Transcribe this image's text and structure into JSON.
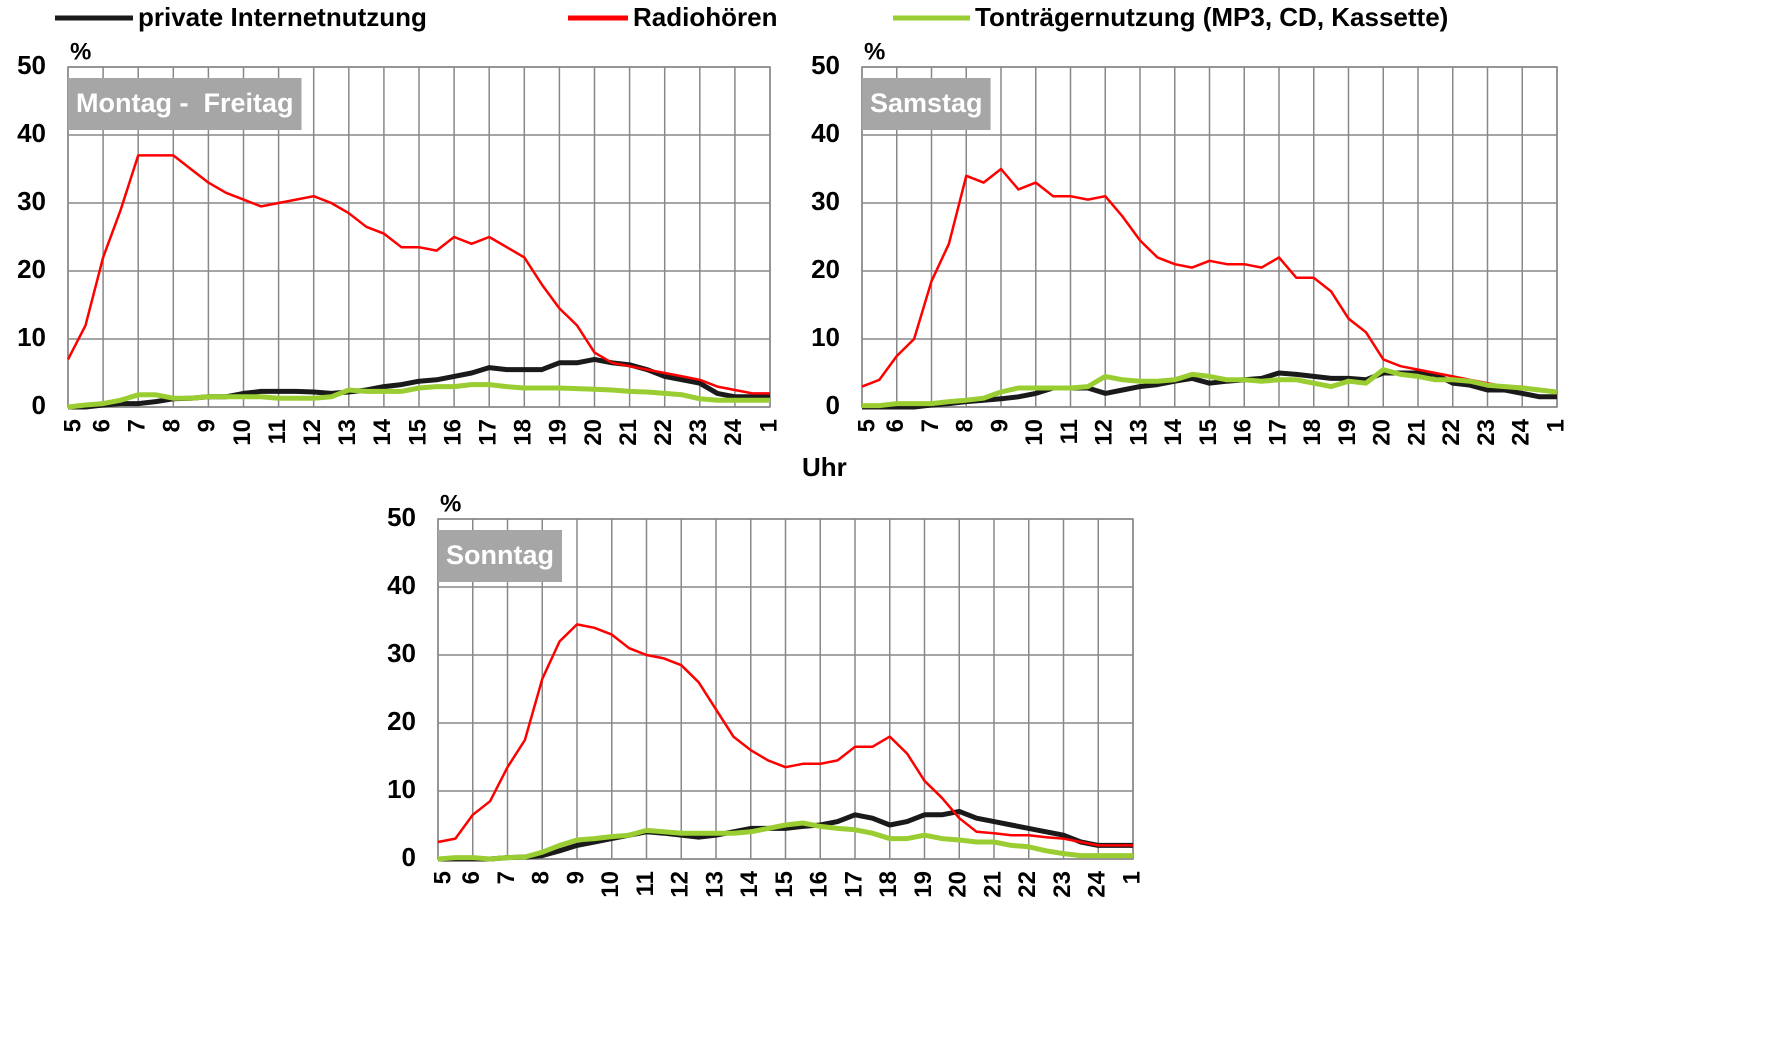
{
  "chart_data": [
    {
      "type": "line",
      "title": "Montag -  Freitag",
      "ylabel": "%",
      "x": [
        5,
        5.5,
        6,
        6.5,
        7,
        7.5,
        8,
        8.5,
        9,
        9.5,
        10,
        10.5,
        11,
        11.5,
        12,
        12.5,
        13,
        13.5,
        14,
        14.5,
        15,
        15.5,
        16,
        16.5,
        17,
        17.5,
        18,
        18.5,
        19,
        19.5,
        20,
        20.5,
        21,
        21.5,
        22,
        22.5,
        23,
        23.5,
        24,
        24.5,
        25
      ],
      "xlim": [
        5,
        25
      ],
      "xticks": [
        5,
        6,
        7,
        8,
        9,
        10,
        11,
        12,
        13,
        14,
        15,
        16,
        17,
        18,
        19,
        20,
        21,
        22,
        23,
        24,
        {
          "value": 25,
          "label": "1"
        }
      ],
      "ylim": [
        0,
        50
      ],
      "yticks": [
        0,
        10,
        20,
        30,
        40,
        50
      ],
      "grid": true,
      "legend": "top",
      "series": [
        {
          "name": "private Internetnutzung",
          "color": "#1a1a1a",
          "values": [
            0,
            0,
            0.3,
            0.5,
            0.5,
            0.8,
            1.2,
            1.3,
            1.5,
            1.5,
            2,
            2.3,
            2.3,
            2.3,
            2.2,
            2,
            2.2,
            2.5,
            3,
            3.3,
            3.8,
            4,
            4.5,
            5,
            5.8,
            5.5,
            5.5,
            5.5,
            6.5,
            6.5,
            7,
            6.5,
            6.2,
            5.5,
            4.5,
            4,
            3.5,
            2,
            1.5,
            1.5,
            1.5
          ]
        },
        {
          "name": "Radiohören",
          "color": "#ff0000",
          "values": [
            7,
            12,
            22,
            29,
            37,
            37,
            37,
            35,
            33,
            31.5,
            30.5,
            29.5,
            30,
            30.5,
            31,
            30,
            28.5,
            26.5,
            25.5,
            23.5,
            23.5,
            23,
            25,
            24,
            25,
            23.5,
            22,
            18,
            14.5,
            12,
            8,
            6.5,
            6,
            5.5,
            5,
            4.5,
            4,
            3,
            2.5,
            2,
            2
          ]
        },
        {
          "name": "Tonträgernutzung (MP3, CD, Kassette)",
          "color": "#9acd32",
          "values": [
            0,
            0.3,
            0.5,
            1,
            1.8,
            1.8,
            1.3,
            1.3,
            1.5,
            1.5,
            1.5,
            1.5,
            1.3,
            1.3,
            1.3,
            1.5,
            2.5,
            2.3,
            2.3,
            2.3,
            2.8,
            3,
            3,
            3.3,
            3.3,
            3,
            2.8,
            2.8,
            2.8,
            2.7,
            2.6,
            2.5,
            2.3,
            2.2,
            2,
            1.8,
            1.2,
            1,
            1,
            1,
            1
          ]
        }
      ]
    },
    {
      "type": "line",
      "title": "Samstag",
      "ylabel": "%",
      "xlabel": "Uhr",
      "x": [
        5,
        5.5,
        6,
        6.5,
        7,
        7.5,
        8,
        8.5,
        9,
        9.5,
        10,
        10.5,
        11,
        11.5,
        12,
        12.5,
        13,
        13.5,
        14,
        14.5,
        15,
        15.5,
        16,
        16.5,
        17,
        17.5,
        18,
        18.5,
        19,
        19.5,
        20,
        20.5,
        21,
        21.5,
        22,
        22.5,
        23,
        23.5,
        24,
        24.5,
        25
      ],
      "xlim": [
        5,
        25
      ],
      "xticks": [
        5,
        6,
        7,
        8,
        9,
        10,
        11,
        12,
        13,
        14,
        15,
        16,
        17,
        18,
        19,
        20,
        21,
        22,
        23,
        24,
        {
          "value": 25,
          "label": "1"
        }
      ],
      "ylim": [
        0,
        50
      ],
      "yticks": [
        0,
        10,
        20,
        30,
        40,
        50
      ],
      "grid": true,
      "series": [
        {
          "color": "#1a1a1a",
          "values": [
            0,
            0,
            0,
            0,
            0.3,
            0.5,
            0.8,
            1,
            1.2,
            1.5,
            2,
            2.8,
            2.8,
            2.8,
            2,
            2.5,
            3,
            3.3,
            3.8,
            4.2,
            3.5,
            3.8,
            4,
            4.2,
            5,
            4.8,
            4.5,
            4.2,
            4.2,
            4,
            5,
            5,
            5,
            4.8,
            3.5,
            3.2,
            2.5,
            2.5,
            2,
            1.5,
            1.5
          ]
        },
        {
          "color": "#ff0000",
          "values": [
            3,
            4,
            7.5,
            10,
            18.5,
            24,
            34,
            33,
            35,
            32,
            33,
            31,
            31,
            30.5,
            31,
            28,
            24.5,
            22,
            21,
            20.5,
            21.5,
            21,
            21,
            20.5,
            22,
            19,
            19,
            17,
            13,
            11,
            7,
            6,
            5.5,
            5,
            4.5,
            4,
            3.5,
            3,
            3,
            2.5,
            2
          ]
        },
        {
          "color": "#9acd32",
          "values": [
            0.2,
            0.2,
            0.5,
            0.5,
            0.5,
            0.8,
            1,
            1.3,
            2.2,
            2.8,
            2.8,
            2.8,
            2.8,
            3,
            4.5,
            4,
            3.8,
            3.8,
            4,
            4.8,
            4.5,
            4,
            4,
            3.8,
            4,
            4,
            3.5,
            3,
            3.8,
            3.5,
            5.5,
            4.8,
            4.5,
            4,
            4,
            3.8,
            3.2,
            3,
            2.8,
            2.5,
            2.2
          ]
        }
      ]
    },
    {
      "type": "line",
      "title": "Sonntag",
      "ylabel": "%",
      "x": [
        5,
        5.5,
        6,
        6.5,
        7,
        7.5,
        8,
        8.5,
        9,
        9.5,
        10,
        10.5,
        11,
        11.5,
        12,
        12.5,
        13,
        13.5,
        14,
        14.5,
        15,
        15.5,
        16,
        16.5,
        17,
        17.5,
        18,
        18.5,
        19,
        19.5,
        20,
        20.5,
        21,
        21.5,
        22,
        22.5,
        23,
        23.5,
        24,
        24.5,
        25
      ],
      "xlim": [
        5,
        25
      ],
      "xticks": [
        5,
        6,
        7,
        8,
        9,
        10,
        11,
        12,
        13,
        14,
        15,
        16,
        17,
        18,
        19,
        20,
        21,
        22,
        23,
        24,
        {
          "value": 25,
          "label": "1"
        }
      ],
      "ylim": [
        0,
        50
      ],
      "yticks": [
        0,
        10,
        20,
        30,
        40,
        50
      ],
      "grid": true,
      "series": [
        {
          "color": "#1a1a1a",
          "values": [
            0,
            0,
            0,
            0,
            0.2,
            0.3,
            0.5,
            1.2,
            2,
            2.5,
            3,
            3.5,
            4,
            3.8,
            3.5,
            3.2,
            3.5,
            4,
            4.5,
            4.5,
            4.5,
            4.8,
            5,
            5.5,
            6.5,
            6,
            5,
            5.5,
            6.5,
            6.5,
            7,
            6,
            5.5,
            5,
            4.5,
            4,
            3.5,
            2.5,
            2,
            2,
            2
          ]
        },
        {
          "color": "#ff0000",
          "values": [
            2.5,
            3,
            6.5,
            8.5,
            13.5,
            17.5,
            26.5,
            32,
            34.5,
            34,
            33,
            31,
            30,
            29.5,
            28.5,
            26,
            22,
            18,
            16,
            14.5,
            13.5,
            14,
            14,
            14.5,
            16.5,
            16.5,
            18,
            15.5,
            11.5,
            9,
            6,
            4,
            3.8,
            3.5,
            3.5,
            3.2,
            3,
            2.5,
            2,
            2,
            2
          ]
        },
        {
          "color": "#9acd32",
          "values": [
            0,
            0.2,
            0.2,
            0,
            0.2,
            0.3,
            1,
            2,
            2.8,
            3,
            3.3,
            3.5,
            4.2,
            4,
            3.8,
            3.8,
            3.8,
            3.8,
            4,
            4.5,
            5,
            5.3,
            4.8,
            4.5,
            4.3,
            3.8,
            3,
            3,
            3.5,
            3,
            2.8,
            2.5,
            2.5,
            2,
            1.8,
            1.2,
            0.8,
            0.5,
            0.5,
            0.5,
            0.5
          ]
        }
      ]
    }
  ]
}
